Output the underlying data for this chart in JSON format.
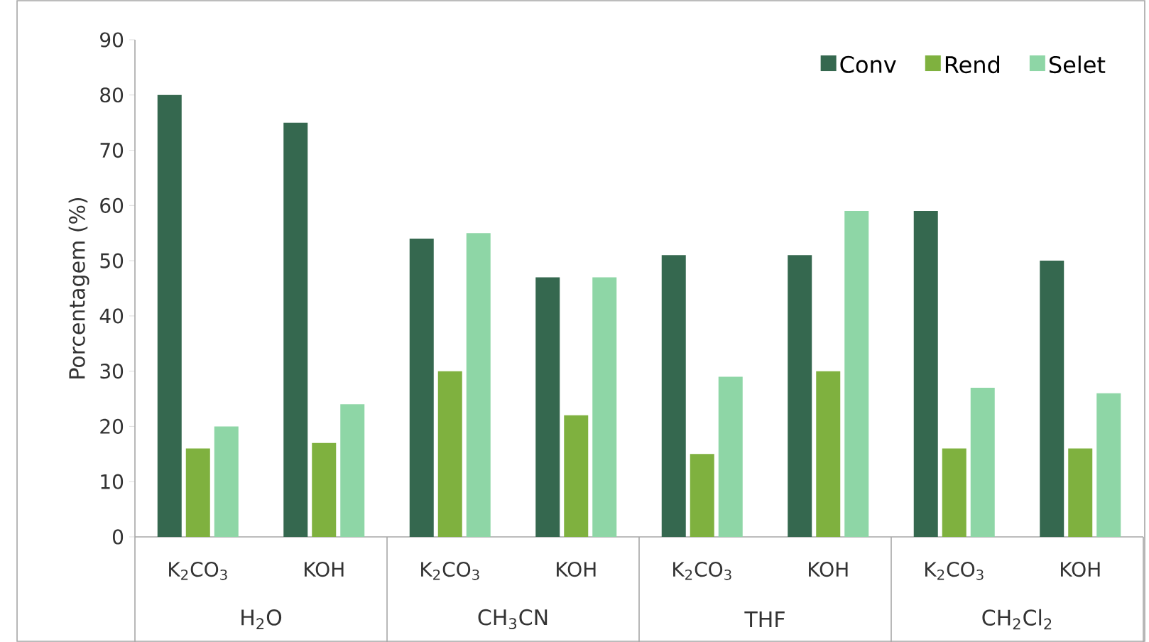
{
  "chart_data": {
    "type": "bar",
    "ylabel": "Porcentagem (%)",
    "categories": [
      "K$_{2}$CO$_{3}$",
      "KOH",
      "K$_{2}$CO$_{3}$",
      "KOH",
      "K$_{2}$CO$_{3}$",
      "KOH",
      "K$_{2}$CO$_{3}$",
      "KOH"
    ],
    "annotations": [
      "H$_{2}$O",
      "CH$_{3}$CN",
      "THF",
      "CH$_{2}$Cl$_{2}$"
    ],
    "series": [
      {
        "name": "Conv",
        "color": "#35684f",
        "values": [
          80,
          75,
          54,
          47,
          51,
          51,
          59,
          50
        ]
      },
      {
        "name": "Rend",
        "color": "#7fb13f",
        "values": [
          16,
          17,
          30,
          22,
          15,
          30,
          16,
          16
        ]
      },
      {
        "name": "Selet",
        "color": "#8ed6a6",
        "values": [
          20,
          24,
          55,
          47,
          29,
          59,
          27,
          26
        ]
      }
    ],
    "ylim": [
      0,
      90
    ],
    "yticks": [
      0,
      10,
      20,
      30,
      40,
      50,
      60,
      70,
      80,
      90
    ],
    "legend": "top right"
  }
}
